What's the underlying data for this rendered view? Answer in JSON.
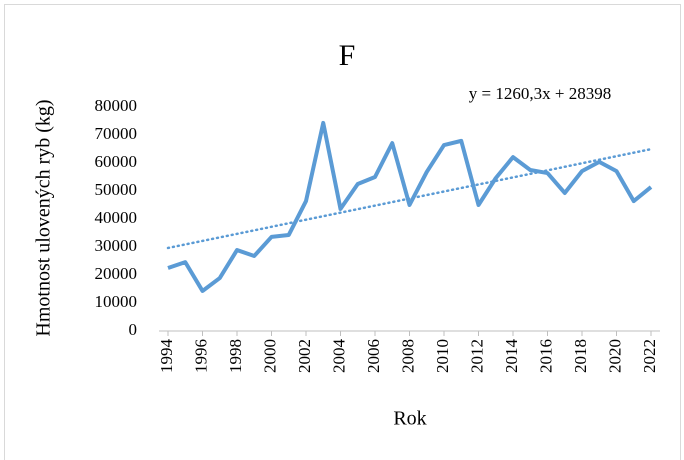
{
  "chart_data": {
    "type": "line",
    "title": "F",
    "x_label": "Rok",
    "y_label": "Hmotnost ulovených ryb (kg)",
    "x": [
      1994,
      1995,
      1996,
      1997,
      1998,
      1999,
      2000,
      2001,
      2002,
      2003,
      2004,
      2005,
      2006,
      2007,
      2008,
      2009,
      2010,
      2011,
      2012,
      2013,
      2014,
      2015,
      2016,
      2017,
      2018,
      2019,
      2020,
      2021,
      2022
    ],
    "series": [
      {
        "name": "Hmotnost ulovených ryb (kg)",
        "color": "#5b9bd5",
        "values": [
          22500,
          24600,
          14300,
          18900,
          28900,
          26800,
          33600,
          34300,
          46400,
          74300,
          43600,
          52500,
          55000,
          67100,
          45000,
          56800,
          66400,
          67900,
          45000,
          54600,
          62100,
          57500,
          56400,
          49300,
          57100,
          60400,
          57100,
          46400,
          51400
        ]
      }
    ],
    "trendline": {
      "label": "y = 1260,3x + 28398",
      "slope": 1260.3,
      "intercept": 28398,
      "color": "#5b9bd5"
    },
    "xlim": [
      1994,
      2022
    ],
    "xticks": [
      1994,
      1996,
      1998,
      2000,
      2002,
      2004,
      2006,
      2008,
      2010,
      2012,
      2014,
      2016,
      2018,
      2020,
      2022
    ],
    "ylim": [
      0,
      80000
    ],
    "yticks": [
      0,
      10000,
      20000,
      30000,
      40000,
      50000,
      60000,
      70000,
      80000
    ],
    "grid": false
  }
}
